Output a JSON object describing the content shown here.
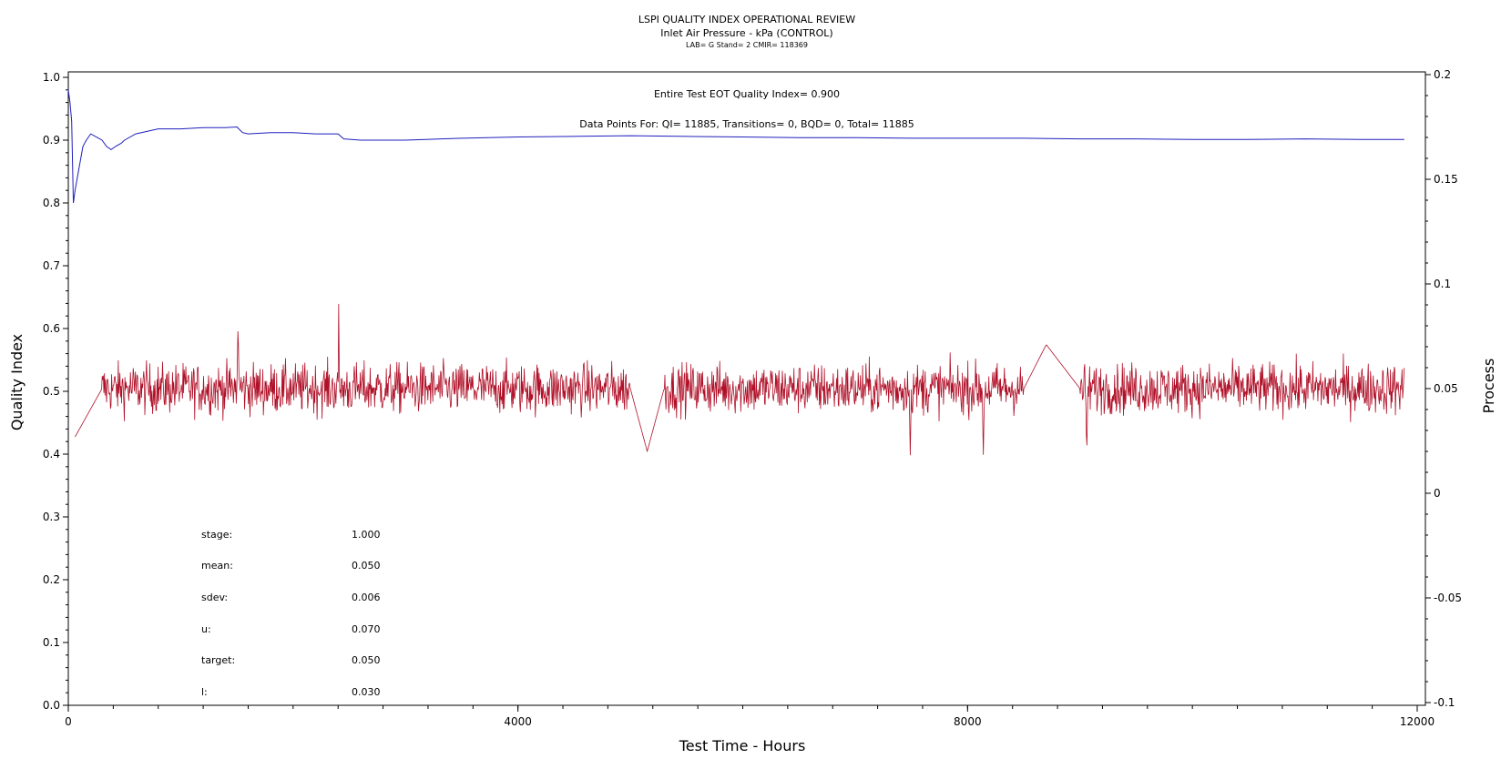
{
  "header": {
    "title": "LSPI QUALITY INDEX OPERATIONAL REVIEW",
    "subtitle": "Inlet Air Pressure - kPa (CONTROL)",
    "lab_line": "LAB= G Stand= 2 CMIR= 118369"
  },
  "annotations": {
    "eot": "Entire Test EOT Quality Index=   0.900",
    "datapoints": "Data Points For: QI= 11885, Transitions=    0, BQD=    0, Total= 11885"
  },
  "stats": [
    {
      "label": "stage:",
      "value": "1.000"
    },
    {
      "label": "mean:",
      "value": "0.050"
    },
    {
      "label": "sdev:",
      "value": "0.006"
    },
    {
      "label": "u:",
      "value": "0.070"
    },
    {
      "label": "target:",
      "value": "0.050"
    },
    {
      "label": "l:",
      "value": "0.030"
    }
  ],
  "colors": {
    "quality_index": "#1f1fbf",
    "process": "#b01028",
    "axes": "#000000"
  },
  "chart_data": {
    "type": "line",
    "title": "LSPI QUALITY INDEX OPERATIONAL REVIEW",
    "xlabel": "Test Time - Hours",
    "ylabel": "Quality Index",
    "y2label": "Process",
    "xlim": [
      0,
      12000
    ],
    "ylim": [
      0.0,
      1.0
    ],
    "y2lim": [
      -0.1,
      0.2
    ],
    "xticks": [
      0,
      4000,
      8000,
      12000
    ],
    "yticks": [
      0.0,
      0.1,
      0.2,
      0.3,
      0.4,
      0.5,
      0.6,
      0.7,
      0.8,
      0.9,
      1.0
    ],
    "y2ticks": [
      -0.1,
      -0.05,
      0,
      0.05,
      0.1,
      0.15,
      0.2
    ],
    "ytick_labels": [
      "0.0",
      "0.1",
      "0.2",
      "0.3",
      "0.4",
      "0.5",
      "0.6",
      "0.7",
      "0.8",
      "0.9",
      "1.0"
    ],
    "y2tick_labels": [
      "-0.1",
      "-0.05",
      "0",
      "0.05",
      "0.1",
      "0.15",
      "0.2"
    ],
    "series": [
      {
        "axis": "left",
        "x": [
          0,
          15,
          30,
          45,
          60,
          80,
          100,
          130,
          160,
          200,
          250,
          300,
          340,
          380,
          420,
          470,
          500,
          600,
          800,
          1000,
          1200,
          1400,
          1500,
          1550,
          1600,
          1800,
          2000,
          2200,
          2400,
          2450,
          2600,
          2800,
          3000,
          3500,
          4000,
          4500,
          5000,
          5500,
          6000,
          6500,
          7000,
          7500,
          8000,
          8500,
          9000,
          9500,
          10000,
          10500,
          11000,
          11500,
          11885
        ],
        "values": [
          0.98,
          0.96,
          0.93,
          0.8,
          0.82,
          0.84,
          0.86,
          0.89,
          0.9,
          0.91,
          0.905,
          0.9,
          0.89,
          0.885,
          0.89,
          0.895,
          0.9,
          0.91,
          0.918,
          0.918,
          0.92,
          0.92,
          0.921,
          0.912,
          0.91,
          0.912,
          0.912,
          0.91,
          0.91,
          0.902,
          0.9,
          0.9,
          0.9,
          0.903,
          0.905,
          0.906,
          0.907,
          0.906,
          0.905,
          0.904,
          0.904,
          0.903,
          0.903,
          0.903,
          0.902,
          0.902,
          0.901,
          0.901,
          0.902,
          0.901,
          0.901
        ]
      },
      {
        "axis": "right",
        "x": [
          0,
          40,
          300,
          700,
          1500,
          1510,
          1520,
          2400,
          2405,
          2410,
          2900,
          4000,
          5000,
          5150,
          5300,
          6000,
          7000,
          7480,
          7490,
          7500,
          8000,
          8130,
          8140,
          8150,
          8500,
          8700,
          9000,
          9050,
          9060,
          9070,
          9500,
          10000,
          11000,
          11500,
          11885
        ],
        "values": [
          0.05,
          0.025,
          0.05,
          0.05,
          0.05,
          0.082,
          0.05,
          0.05,
          0.093,
          0.05,
          0.05,
          0.05,
          0.05,
          0.02,
          0.05,
          0.05,
          0.05,
          0.05,
          0.018,
          0.05,
          0.05,
          0.05,
          0.017,
          0.05,
          0.05,
          0.071,
          0.05,
          0.05,
          0.017,
          0.05,
          0.05,
          0.05,
          0.05,
          0.05,
          0.05
        ],
        "noise_sdev": 0.006
      }
    ]
  }
}
